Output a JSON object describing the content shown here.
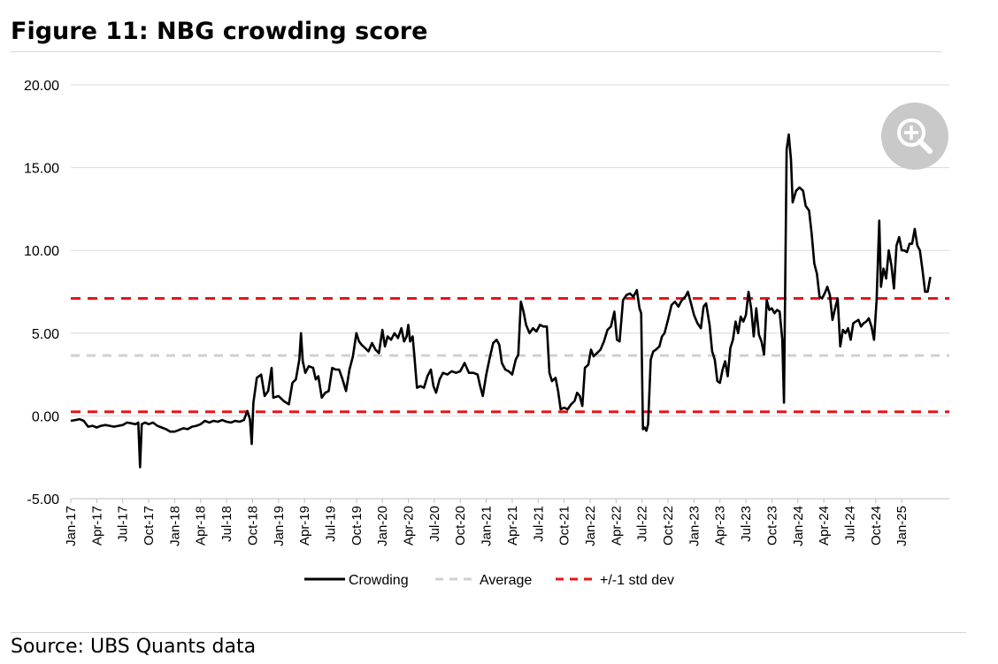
{
  "figure": {
    "title": "Figure 11: NBG crowding score",
    "source": "Source: UBS Quants data",
    "zoom_icon": "zoom-in-icon"
  },
  "chart_data": {
    "type": "line",
    "title": "Figure 11: NBG crowding score",
    "xlabel": "",
    "ylabel": "",
    "ylim": [
      -5,
      20
    ],
    "grid": true,
    "legend_position": "bottom",
    "y_ticks": [
      "20.00",
      "15.00",
      "10.00",
      "5.00",
      "0.00",
      "-5.00"
    ],
    "y_tick_values": [
      20,
      15,
      10,
      5,
      0,
      -5
    ],
    "x_ticks": [
      "Jan-17",
      "Apr-17",
      "Jul-17",
      "Oct-17",
      "Jan-18",
      "Apr-18",
      "Jul-18",
      "Oct-18",
      "Jan-19",
      "Apr-19",
      "Jul-19",
      "Oct-19",
      "Jan-20",
      "Apr-20",
      "Jul-20",
      "Oct-20",
      "Jan-21",
      "Apr-21",
      "Jul-21",
      "Oct-21",
      "Jan-22",
      "Apr-22",
      "Jul-22",
      "Oct-22",
      "Jan-23",
      "Apr-23",
      "Jul-23",
      "Oct-23",
      "Jan-24",
      "Apr-24",
      "Jul-24",
      "Oct-24",
      "Jan-25"
    ],
    "x_range_months": [
      0,
      101.5
    ],
    "series": [
      {
        "name": "Crowding",
        "color": "#000000",
        "style": "solid",
        "points": [
          [
            0,
            -0.3
          ],
          [
            0.5,
            -0.25
          ],
          [
            1,
            -0.2
          ],
          [
            1.5,
            -0.3
          ],
          [
            2,
            -0.65
          ],
          [
            2.5,
            -0.6
          ],
          [
            3,
            -0.7
          ],
          [
            3.5,
            -0.6
          ],
          [
            4,
            -0.55
          ],
          [
            4.5,
            -0.6
          ],
          [
            5,
            -0.65
          ],
          [
            5.5,
            -0.6
          ],
          [
            6,
            -0.55
          ],
          [
            6.5,
            -0.4
          ],
          [
            7,
            -0.45
          ],
          [
            7.5,
            -0.5
          ],
          [
            7.8,
            -0.4
          ],
          [
            8.0,
            -3.1
          ],
          [
            8.2,
            -0.5
          ],
          [
            8.6,
            -0.4
          ],
          [
            9,
            -0.5
          ],
          [
            9.5,
            -0.4
          ],
          [
            10,
            -0.6
          ],
          [
            10.5,
            -0.7
          ],
          [
            11,
            -0.8
          ],
          [
            11.5,
            -0.95
          ],
          [
            12,
            -0.95
          ],
          [
            12.5,
            -0.85
          ],
          [
            13,
            -0.75
          ],
          [
            13.5,
            -0.8
          ],
          [
            14,
            -0.65
          ],
          [
            14.5,
            -0.6
          ],
          [
            15,
            -0.5
          ],
          [
            15.5,
            -0.3
          ],
          [
            16,
            -0.4
          ],
          [
            16.5,
            -0.3
          ],
          [
            17,
            -0.35
          ],
          [
            17.5,
            -0.25
          ],
          [
            18,
            -0.35
          ],
          [
            18.5,
            -0.4
          ],
          [
            19,
            -0.3
          ],
          [
            19.5,
            -0.35
          ],
          [
            20,
            -0.25
          ],
          [
            20.4,
            0.3
          ],
          [
            20.7,
            -0.2
          ],
          [
            20.9,
            -1.7
          ],
          [
            21.1,
            0.8
          ],
          [
            21.5,
            2.3
          ],
          [
            22,
            2.5
          ],
          [
            22.4,
            1.2
          ],
          [
            22.8,
            1.5
          ],
          [
            23.2,
            2.9
          ],
          [
            23.4,
            1.1
          ],
          [
            24,
            1.2
          ],
          [
            24.6,
            0.9
          ],
          [
            25.2,
            0.7
          ],
          [
            25.6,
            2.0
          ],
          [
            26,
            2.2
          ],
          [
            26.4,
            3.4
          ],
          [
            26.6,
            5.0
          ],
          [
            26.8,
            3.3
          ],
          [
            27.1,
            2.6
          ],
          [
            27.5,
            3.0
          ],
          [
            28,
            2.9
          ],
          [
            28.3,
            2.2
          ],
          [
            28.6,
            2.4
          ],
          [
            29,
            1.1
          ],
          [
            29.4,
            1.4
          ],
          [
            29.8,
            1.5
          ],
          [
            30.2,
            2.9
          ],
          [
            30.6,
            2.8
          ],
          [
            31,
            2.8
          ],
          [
            31.4,
            2.2
          ],
          [
            31.8,
            1.5
          ],
          [
            32.2,
            2.8
          ],
          [
            32.6,
            3.6
          ],
          [
            33,
            5.0
          ],
          [
            33.3,
            4.5
          ],
          [
            33.6,
            4.3
          ],
          [
            34,
            4.1
          ],
          [
            34.4,
            3.9
          ],
          [
            34.8,
            4.4
          ],
          [
            35.2,
            4.0
          ],
          [
            35.6,
            3.8
          ],
          [
            36,
            5.2
          ],
          [
            36.3,
            4.2
          ],
          [
            36.6,
            4.8
          ],
          [
            37,
            4.6
          ],
          [
            37.4,
            5.0
          ],
          [
            37.8,
            4.7
          ],
          [
            38.2,
            5.3
          ],
          [
            38.5,
            4.5
          ],
          [
            38.8,
            4.8
          ],
          [
            39,
            5.5
          ],
          [
            39.2,
            4.5
          ],
          [
            39.5,
            4.8
          ],
          [
            39.7,
            3.6
          ],
          [
            40,
            1.7
          ],
          [
            40.4,
            1.8
          ],
          [
            40.8,
            1.7
          ],
          [
            41.2,
            2.4
          ],
          [
            41.6,
            2.8
          ],
          [
            41.9,
            1.8
          ],
          [
            42.2,
            1.4
          ],
          [
            42.6,
            2.2
          ],
          [
            43,
            2.6
          ],
          [
            43.5,
            2.5
          ],
          [
            44,
            2.7
          ],
          [
            44.5,
            2.6
          ],
          [
            45,
            2.7
          ],
          [
            45.5,
            3.2
          ],
          [
            46,
            2.6
          ],
          [
            46.5,
            2.6
          ],
          [
            47,
            2.5
          ],
          [
            47.3,
            1.8
          ],
          [
            47.6,
            1.2
          ],
          [
            48,
            2.5
          ],
          [
            48.4,
            3.5
          ],
          [
            48.8,
            4.4
          ],
          [
            49.2,
            4.6
          ],
          [
            49.5,
            4.3
          ],
          [
            49.8,
            3.2
          ],
          [
            50.2,
            2.8
          ],
          [
            50.6,
            2.7
          ],
          [
            51,
            2.5
          ],
          [
            51.4,
            3.4
          ],
          [
            51.7,
            3.7
          ],
          [
            52,
            6.9
          ],
          [
            52.3,
            6.3
          ],
          [
            52.6,
            5.5
          ],
          [
            53,
            5.0
          ],
          [
            53.4,
            5.3
          ],
          [
            53.8,
            5.1
          ],
          [
            54.2,
            5.5
          ],
          [
            54.6,
            5.4
          ],
          [
            55,
            5.4
          ],
          [
            55.3,
            2.6
          ],
          [
            55.6,
            2.1
          ],
          [
            56,
            2.3
          ],
          [
            56.3,
            1.5
          ],
          [
            56.6,
            0.4
          ],
          [
            57,
            0.5
          ],
          [
            57.4,
            0.4
          ],
          [
            57.8,
            0.7
          ],
          [
            58.2,
            0.9
          ],
          [
            58.5,
            1.4
          ],
          [
            58.8,
            1.2
          ],
          [
            59.1,
            0.6
          ],
          [
            59.4,
            2.9
          ],
          [
            59.8,
            3.1
          ],
          [
            60.1,
            4.0
          ],
          [
            60.4,
            3.6
          ],
          [
            60.8,
            3.8
          ],
          [
            61.2,
            4.0
          ],
          [
            61.6,
            4.5
          ],
          [
            62,
            5.2
          ],
          [
            62.4,
            5.4
          ],
          [
            62.8,
            6.3
          ],
          [
            63.1,
            4.6
          ],
          [
            63.4,
            4.5
          ],
          [
            63.8,
            7.0
          ],
          [
            64.2,
            7.3
          ],
          [
            64.6,
            7.4
          ],
          [
            65,
            7.2
          ],
          [
            65.4,
            7.6
          ],
          [
            65.7,
            6.5
          ],
          [
            65.9,
            6.2
          ],
          [
            66.1,
            -0.8
          ],
          [
            66.3,
            -0.7
          ],
          [
            66.5,
            -0.9
          ],
          [
            66.7,
            -0.5
          ],
          [
            67,
            3.4
          ],
          [
            67.3,
            3.9
          ],
          [
            67.6,
            4.0
          ],
          [
            68,
            4.2
          ],
          [
            68.3,
            4.8
          ],
          [
            68.6,
            5.0
          ],
          [
            69,
            5.8
          ],
          [
            69.4,
            6.7
          ],
          [
            69.8,
            6.9
          ],
          [
            70.2,
            6.6
          ],
          [
            70.6,
            7.0
          ],
          [
            71,
            7.2
          ],
          [
            71.3,
            7.5
          ],
          [
            71.6,
            6.9
          ],
          [
            72,
            6.1
          ],
          [
            72.4,
            5.6
          ],
          [
            72.8,
            5.3
          ],
          [
            73.1,
            6.6
          ],
          [
            73.4,
            6.8
          ],
          [
            73.8,
            5.5
          ],
          [
            74.1,
            3.9
          ],
          [
            74.4,
            3.4
          ],
          [
            74.7,
            2.1
          ],
          [
            75,
            2.0
          ],
          [
            75.3,
            2.8
          ],
          [
            75.6,
            3.3
          ],
          [
            75.9,
            2.4
          ],
          [
            76.2,
            4.1
          ],
          [
            76.5,
            4.6
          ],
          [
            76.8,
            5.7
          ],
          [
            77.1,
            5.0
          ],
          [
            77.4,
            6.0
          ],
          [
            77.7,
            5.7
          ],
          [
            78,
            6.1
          ],
          [
            78.3,
            7.5
          ],
          [
            78.6,
            6.5
          ],
          [
            78.9,
            4.8
          ],
          [
            79.2,
            6.5
          ],
          [
            79.5,
            4.9
          ],
          [
            79.8,
            4.5
          ],
          [
            80.1,
            3.7
          ],
          [
            80.4,
            7.0
          ],
          [
            80.7,
            6.4
          ],
          [
            81,
            6.5
          ],
          [
            81.3,
            6.2
          ],
          [
            81.6,
            6.4
          ],
          [
            81.9,
            6.3
          ],
          [
            82.2,
            4.6
          ],
          [
            82.4,
            0.8
          ],
          [
            82.7,
            16.1
          ],
          [
            82.95,
            17.0
          ],
          [
            83.2,
            15.5
          ],
          [
            83.4,
            12.9
          ],
          [
            83.8,
            13.6
          ],
          [
            84.2,
            13.8
          ],
          [
            84.6,
            13.6
          ],
          [
            84.9,
            12.7
          ],
          [
            85.3,
            12.4
          ],
          [
            85.6,
            11.0
          ],
          [
            85.9,
            9.2
          ],
          [
            86.2,
            8.6
          ],
          [
            86.5,
            7.2
          ],
          [
            86.8,
            7.1
          ],
          [
            87.1,
            7.4
          ],
          [
            87.4,
            7.8
          ],
          [
            87.7,
            7.3
          ],
          [
            88,
            5.8
          ],
          [
            88.3,
            6.5
          ],
          [
            88.6,
            7.1
          ],
          [
            88.9,
            4.2
          ],
          [
            89.2,
            5.2
          ],
          [
            89.5,
            5.0
          ],
          [
            89.8,
            5.3
          ],
          [
            90.1,
            4.6
          ],
          [
            90.4,
            5.6
          ],
          [
            90.7,
            5.7
          ],
          [
            91,
            5.8
          ],
          [
            91.3,
            5.4
          ],
          [
            91.6,
            5.6
          ],
          [
            91.9,
            5.7
          ],
          [
            92.2,
            5.9
          ],
          [
            92.5,
            5.4
          ],
          [
            92.8,
            4.6
          ],
          [
            93.1,
            7.0
          ],
          [
            93.4,
            11.8
          ],
          [
            93.6,
            7.8
          ],
          [
            93.9,
            8.9
          ],
          [
            94.2,
            8.3
          ],
          [
            94.5,
            10.0
          ],
          [
            94.8,
            9.1
          ],
          [
            95.1,
            7.7
          ],
          [
            95.4,
            10.3
          ],
          [
            95.7,
            10.8
          ],
          [
            96,
            10.0
          ],
          [
            96.3,
            10.0
          ],
          [
            96.6,
            9.9
          ],
          [
            96.9,
            10.4
          ],
          [
            97.2,
            10.4
          ],
          [
            97.5,
            11.3
          ],
          [
            97.8,
            10.3
          ],
          [
            98.1,
            10.0
          ],
          [
            98.4,
            8.8
          ],
          [
            98.7,
            7.5
          ],
          [
            99.0,
            7.5
          ],
          [
            99.3,
            8.4
          ]
        ]
      },
      {
        "name": "Average",
        "color": "#d0d0d0",
        "style": "dashed",
        "value": 3.65
      },
      {
        "name": "+/-1 std dev",
        "color": "#e8141a",
        "style": "dashed",
        "values": [
          7.1,
          0.25
        ]
      }
    ]
  }
}
